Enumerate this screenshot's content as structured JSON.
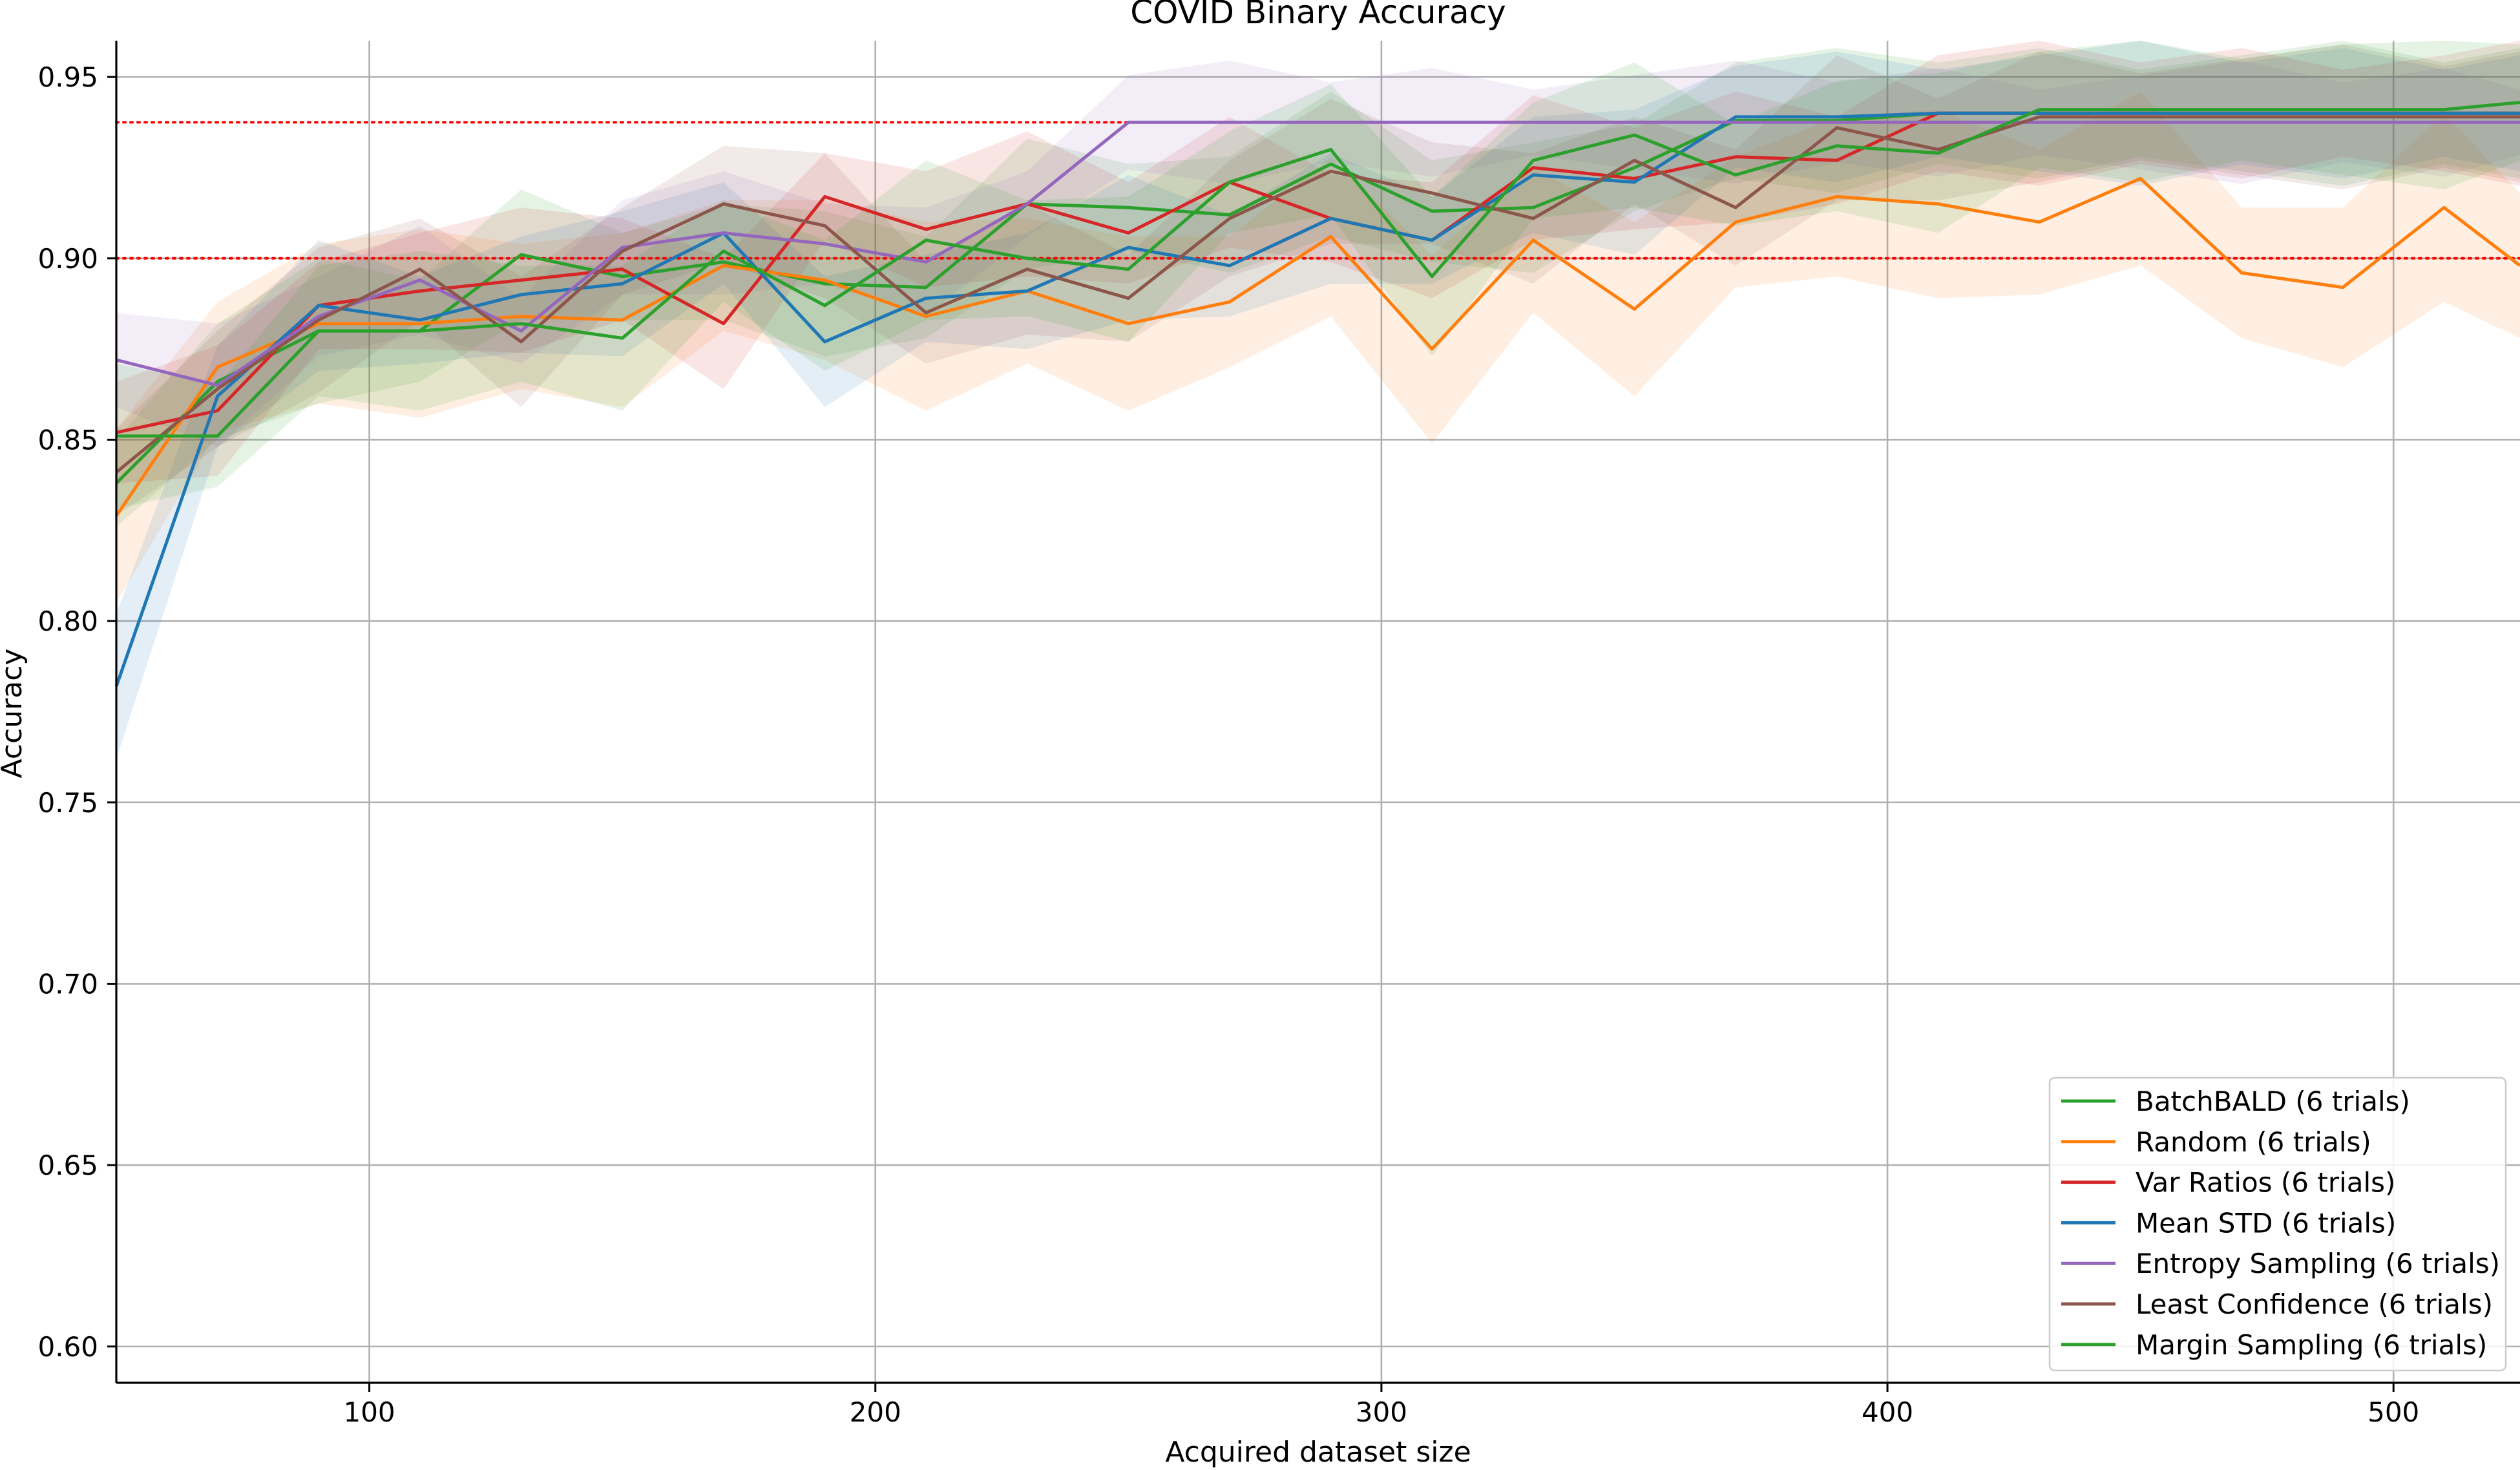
{
  "chart_data": {
    "type": "line",
    "title": "COVID Binary Accuracy",
    "xlabel": "Acquired dataset size",
    "ylabel": "Accuracy",
    "xlim": [
      50,
      525
    ],
    "ylim": [
      0.59,
      0.96
    ],
    "xticks": [
      100,
      200,
      300,
      400,
      500
    ],
    "yticks": [
      0.6,
      0.65,
      0.7,
      0.75,
      0.8,
      0.85,
      0.9,
      0.95
    ],
    "ytick_labels": [
      "0.60",
      "0.65",
      "0.70",
      "0.75",
      "0.80",
      "0.85",
      "0.90",
      "0.95"
    ],
    "grid": true,
    "legend_position": "bottom-right",
    "reference_lines": [
      {
        "y": 0.9375,
        "x_end": 250,
        "color": "#ff0000",
        "style": "dotted"
      },
      {
        "y": 0.9,
        "x_end": 525,
        "color": "#ff0000",
        "style": "dotted"
      }
    ],
    "x": [
      50,
      70,
      90,
      110,
      130,
      150,
      170,
      190,
      210,
      230,
      250,
      270,
      290,
      310,
      330,
      350,
      370,
      390,
      410,
      430,
      450,
      470,
      490,
      510,
      525
    ],
    "series": [
      {
        "name": "BatchBALD (6 trials)",
        "color": "#2ca02c",
        "values": [
          0.838,
          0.866,
          0.88,
          0.88,
          0.901,
          0.895,
          0.899,
          0.893,
          0.892,
          0.915,
          0.914,
          0.912,
          0.926,
          0.913,
          0.914,
          0.925,
          0.938,
          0.938,
          0.94,
          0.94,
          0.94,
          0.94,
          0.94,
          0.94,
          0.94
        ],
        "band": 0.016
      },
      {
        "name": "Random (6 trials)",
        "color": "#ff7f0e",
        "values": [
          0.829,
          0.87,
          0.882,
          0.882,
          0.884,
          0.883,
          0.898,
          0.894,
          0.884,
          0.891,
          0.882,
          0.888,
          0.906,
          0.875,
          0.905,
          0.886,
          0.91,
          0.917,
          0.915,
          0.91,
          0.922,
          0.896,
          0.892,
          0.914,
          0.898
        ],
        "band": 0.022
      },
      {
        "name": "Var Ratios (6 trials)",
        "color": "#d62728",
        "values": [
          0.852,
          0.858,
          0.887,
          0.891,
          0.894,
          0.897,
          0.882,
          0.917,
          0.908,
          0.915,
          0.907,
          0.921,
          0.911,
          0.905,
          0.925,
          0.922,
          0.928,
          0.927,
          0.94,
          0.94,
          0.94,
          0.94,
          0.94,
          0.94,
          0.94
        ],
        "band": 0.016
      },
      {
        "name": "Mean STD (6 trials)",
        "color": "#1f77b4",
        "values": [
          0.782,
          0.862,
          0.887,
          0.883,
          0.89,
          0.893,
          0.907,
          0.877,
          0.889,
          0.891,
          0.903,
          0.898,
          0.911,
          0.905,
          0.923,
          0.921,
          0.939,
          0.939,
          0.94,
          0.94,
          0.94,
          0.94,
          0.94,
          0.94,
          0.94
        ],
        "band": 0.016
      },
      {
        "name": "Entropy Sampling (6 trials)",
        "color": "#9467bd",
        "values": [
          0.872,
          0.865,
          0.884,
          0.894,
          0.88,
          0.903,
          0.907,
          0.904,
          0.899,
          0.915,
          0.9375,
          0.9375,
          0.9375,
          0.9375,
          0.9375,
          0.9375,
          0.9375,
          0.9375,
          0.9375,
          0.9375,
          0.9375,
          0.9375,
          0.9375,
          0.9375,
          0.9375
        ],
        "band": 0.013
      },
      {
        "name": "Least Confidence (6 trials)",
        "color": "#8c564b",
        "values": [
          0.841,
          0.864,
          0.883,
          0.897,
          0.877,
          0.902,
          0.915,
          0.909,
          0.885,
          0.897,
          0.889,
          0.911,
          0.924,
          0.918,
          0.911,
          0.927,
          0.914,
          0.936,
          0.93,
          0.939,
          0.939,
          0.939,
          0.939,
          0.939,
          0.939
        ],
        "band": 0.016
      },
      {
        "name": "Margin Sampling (6 trials)",
        "color": "#2ca02c",
        "values": [
          0.851,
          0.851,
          0.88,
          0.88,
          0.882,
          0.878,
          0.902,
          0.887,
          0.905,
          0.9,
          0.897,
          0.921,
          0.93,
          0.895,
          0.927,
          0.934,
          0.923,
          0.931,
          0.929,
          0.941,
          0.941,
          0.941,
          0.941,
          0.941,
          0.943
        ],
        "band": 0.018
      }
    ]
  }
}
